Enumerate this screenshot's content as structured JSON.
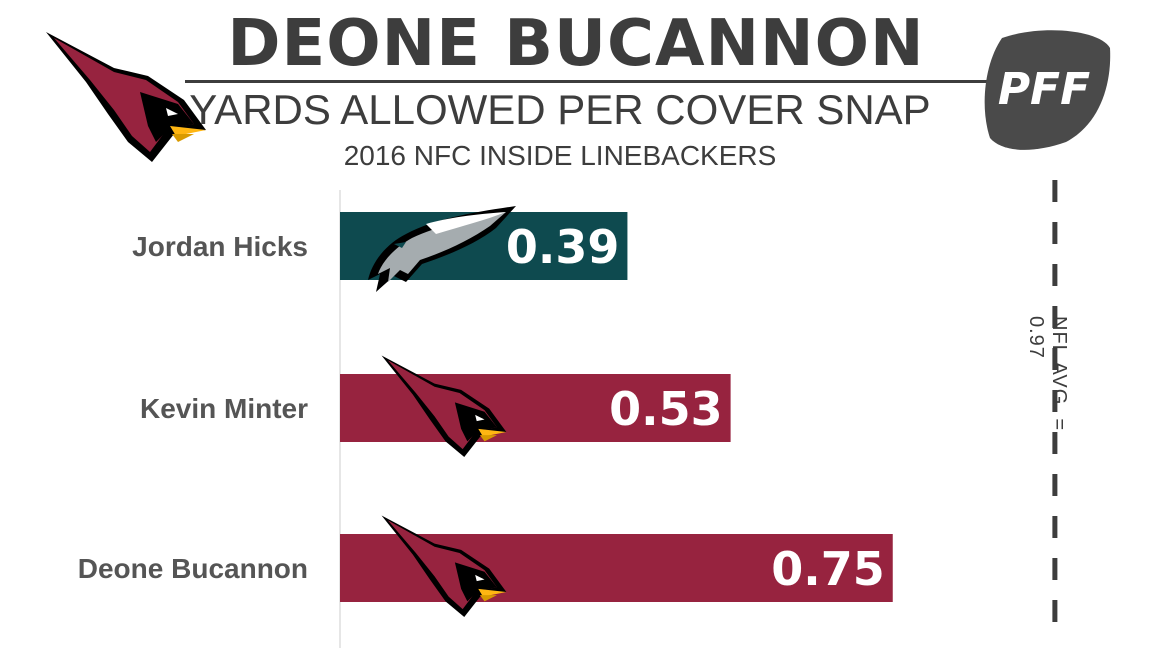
{
  "header": {
    "title": "DEONE BUCANNON",
    "subtitle": "YARDS ALLOWED PER COVER SNAP",
    "subsubtitle": "2016 NFC INSIDE LINEBACKERS"
  },
  "brand": {
    "pff_text": "PFF"
  },
  "colors": {
    "eagles": "#0e4a4f",
    "cardinals": "#97233f",
    "text": "#3d3d3d"
  },
  "chart_data": {
    "type": "bar",
    "orientation": "horizontal",
    "title": "YARDS ALLOWED PER COVER SNAP",
    "subtitle": "2016 NFC INSIDE LINEBACKERS",
    "categories": [
      "Jordan Hicks",
      "Kevin Minter",
      "Deone Bucannon"
    ],
    "values": [
      0.39,
      0.53,
      0.75
    ],
    "value_labels": [
      "0.39",
      "0.53",
      "0.75"
    ],
    "teams": [
      "eagles-logo",
      "cardinals-logo",
      "cardinals-logo"
    ],
    "bar_colors": [
      "#0e4a4f",
      "#97233f",
      "#97233f"
    ],
    "reference_line": {
      "value": 0.97,
      "label": "NFL AVG. = 0.97",
      "style": "dashed"
    },
    "xlim": [
      0,
      1.0
    ],
    "grid": false,
    "legend": "none"
  }
}
